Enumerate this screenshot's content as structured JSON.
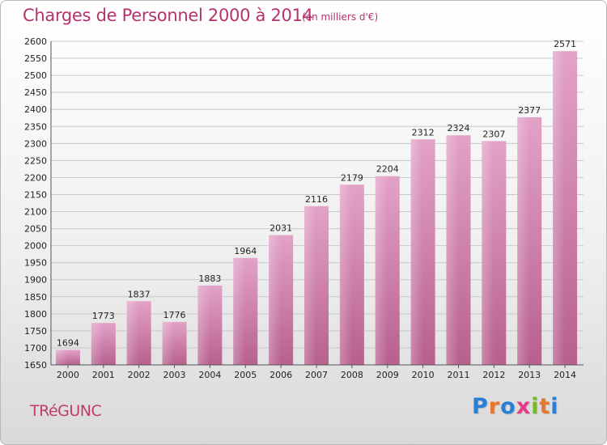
{
  "chart_data": {
    "type": "bar",
    "title": "Charges de Personnel 2000 à 2014",
    "subtitle": "(en milliers d'€)",
    "categories": [
      "2000",
      "2001",
      "2002",
      "2003",
      "2004",
      "2005",
      "2006",
      "2007",
      "2008",
      "2009",
      "2010",
      "2011",
      "2012",
      "2013",
      "2014"
    ],
    "values": [
      1694,
      1773,
      1837,
      1776,
      1883,
      1964,
      2031,
      2116,
      2179,
      2204,
      2312,
      2324,
      2307,
      2377,
      2571
    ],
    "ylim": [
      1650,
      2600
    ],
    "ytick_step": 50,
    "grid": true,
    "bar_color": "#d98ab7"
  },
  "commune": "TRéGUNC",
  "logo": {
    "letters": [
      "P",
      "r",
      "o",
      "x",
      "i",
      "t",
      "i"
    ],
    "colors": [
      "#2a7fd4",
      "#e8762b",
      "#2a7fd4",
      "#e83a8a",
      "#7ab829",
      "#e8762b",
      "#2a7fd4"
    ]
  }
}
